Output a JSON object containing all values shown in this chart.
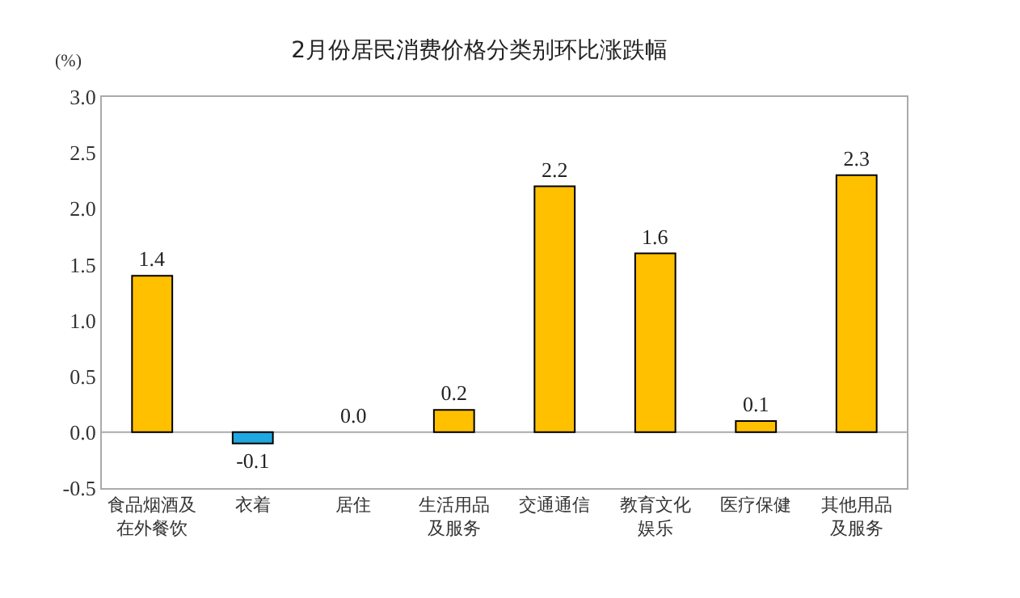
{
  "chart_data": {
    "type": "bar",
    "title": "2月份居民消费价格分类别环比涨跌幅",
    "ylabel": "(%)",
    "categories": [
      "食品烟酒及在外餐饮",
      "衣着",
      "居住",
      "生活用品及服务",
      "交通通信",
      "教育文化娱乐",
      "医疗保健",
      "其他用品及服务"
    ],
    "values": [
      1.4,
      -0.1,
      0.0,
      0.2,
      2.2,
      1.6,
      0.1,
      2.3
    ],
    "value_labels": [
      "1.4",
      "-0.1",
      "0.0",
      "0.2",
      "2.2",
      "1.6",
      "0.1",
      "2.3"
    ],
    "ref_lines": [
      {
        "axis": "y",
        "value": 0,
        "color": "#aaaaaa"
      }
    ],
    "colors": [
      "#ffc000",
      "#1fa8e0",
      "#ffc000",
      "#ffc000",
      "#ffc000",
      "#ffc000",
      "#ffc000",
      "#ffc000"
    ],
    "ylim": [
      -0.5,
      3.0
    ],
    "yticks": [
      {
        "value": -0.5,
        "label": "-0.5"
      },
      {
        "value": 0,
        "label": "0.0"
      },
      {
        "value": 0.5,
        "label": "0.5"
      },
      {
        "value": 1,
        "label": "1.0"
      },
      {
        "value": 1.5,
        "label": "1.5"
      },
      {
        "value": 2,
        "label": "2.0"
      },
      {
        "value": 2.5,
        "label": "2.5"
      },
      {
        "value": 3,
        "label": "3.0"
      }
    ],
    "grid": false
  }
}
